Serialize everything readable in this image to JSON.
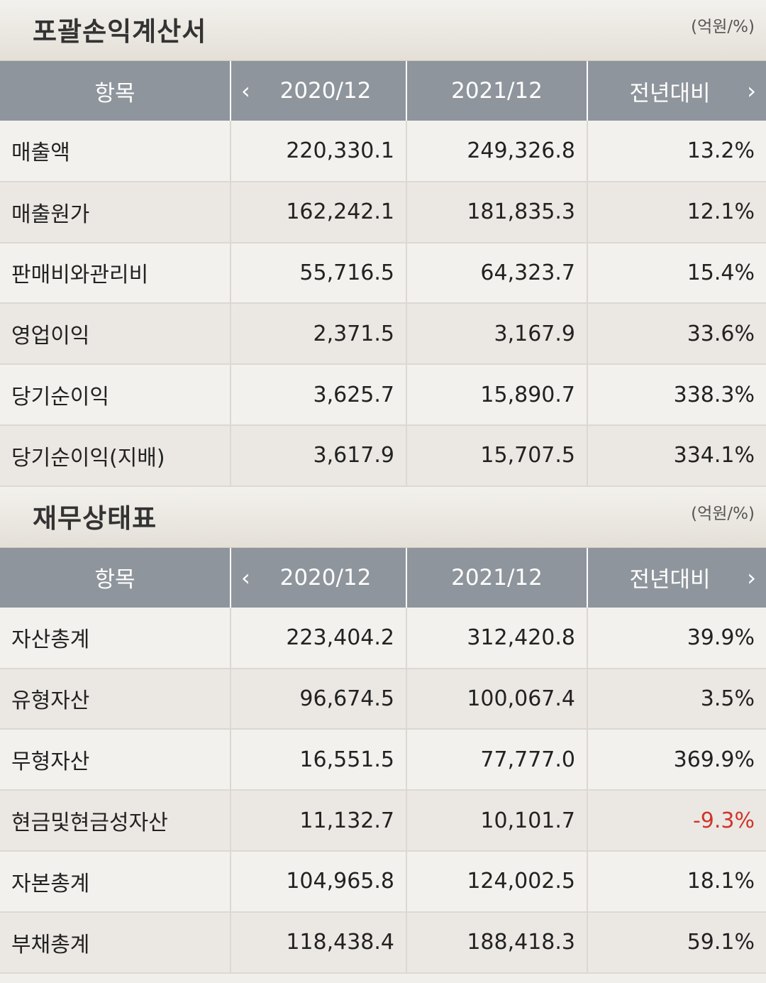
{
  "income": {
    "title": "포괄손익계산서",
    "unit": "(억원/%)",
    "headers": {
      "item": "항목",
      "period1": "2020/12",
      "period2": "2021/12",
      "yoy": "전년대비"
    },
    "rows": [
      {
        "label": "매출액",
        "v2020": "220,330.1",
        "v2021": "249,326.8",
        "yoy": "13.2%"
      },
      {
        "label": "매출원가",
        "v2020": "162,242.1",
        "v2021": "181,835.3",
        "yoy": "12.1%"
      },
      {
        "label": "판매비와관리비",
        "v2020": "55,716.5",
        "v2021": "64,323.7",
        "yoy": "15.4%"
      },
      {
        "label": "영업이익",
        "v2020": "2,371.5",
        "v2021": "3,167.9",
        "yoy": "33.6%"
      },
      {
        "label": "당기순이익",
        "v2020": "3,625.7",
        "v2021": "15,890.7",
        "yoy": "338.3%"
      },
      {
        "label": "당기순이익(지배)",
        "v2020": "3,617.9",
        "v2021": "15,707.5",
        "yoy": "334.1%"
      }
    ]
  },
  "balance": {
    "title": "재무상태표",
    "unit": "(억원/%)",
    "headers": {
      "item": "항목",
      "period1": "2020/12",
      "period2": "2021/12",
      "yoy": "전년대비"
    },
    "rows": [
      {
        "label": "자산총계",
        "v2020": "223,404.2",
        "v2021": "312,420.8",
        "yoy": "39.9%"
      },
      {
        "label": "유형자산",
        "v2020": "96,674.5",
        "v2021": "100,067.4",
        "yoy": "3.5%"
      },
      {
        "label": "무형자산",
        "v2020": "16,551.5",
        "v2021": "77,777.0",
        "yoy": "369.9%"
      },
      {
        "label": "현금및현금성자산",
        "v2020": "11,132.7",
        "v2021": "10,101.7",
        "yoy": "-9.3%"
      },
      {
        "label": "자본총계",
        "v2020": "104,965.8",
        "v2021": "124,002.5",
        "yoy": "18.1%"
      },
      {
        "label": "부채총계",
        "v2020": "118,438.4",
        "v2021": "188,418.3",
        "yoy": "59.1%"
      }
    ]
  },
  "icons": {
    "prev": "chevron-left-icon",
    "next": "chevron-right-icon"
  },
  "colors": {
    "header_bg": "#8f959c",
    "negative": "#d0352a"
  }
}
